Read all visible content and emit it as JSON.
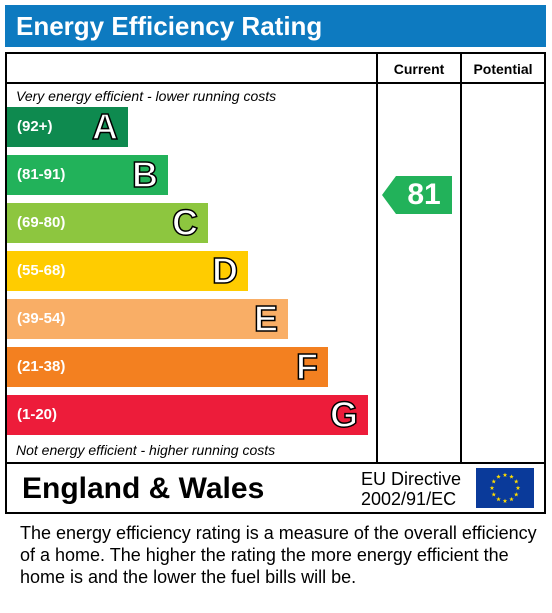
{
  "title": "Energy Efficiency Rating",
  "columns": {
    "current": "Current",
    "potential": "Potential"
  },
  "captions": {
    "top": "Very energy efficient - lower running costs",
    "bottom": "Not energy efficient - higher running costs"
  },
  "chart_data": {
    "type": "bar",
    "title": "Energy Efficiency Rating",
    "categories": [
      "A",
      "B",
      "C",
      "D",
      "E",
      "F",
      "G"
    ],
    "ranges": [
      "(92+)",
      "(81-91)",
      "(69-80)",
      "(55-68)",
      "(39-54)",
      "(21-38)",
      "(1-20)"
    ],
    "colors": [
      "#0e8a4f",
      "#22b25a",
      "#8dc63f",
      "#ffcc00",
      "#f9ae66",
      "#f38020",
      "#ed1c3a"
    ],
    "current": {
      "value": 81,
      "band": "B",
      "color": "#22b25a"
    },
    "potential": null
  },
  "footer": {
    "region": "England & Wales",
    "directive_line1": "EU Directive",
    "directive_line2": "2002/91/EC",
    "flag_icon": "eu-flag-icon"
  },
  "description": "The energy efficiency rating is a measure of the overall efficiency of a home.  The higher the rating the more energy efficient the home is and the lower the fuel bills will be."
}
